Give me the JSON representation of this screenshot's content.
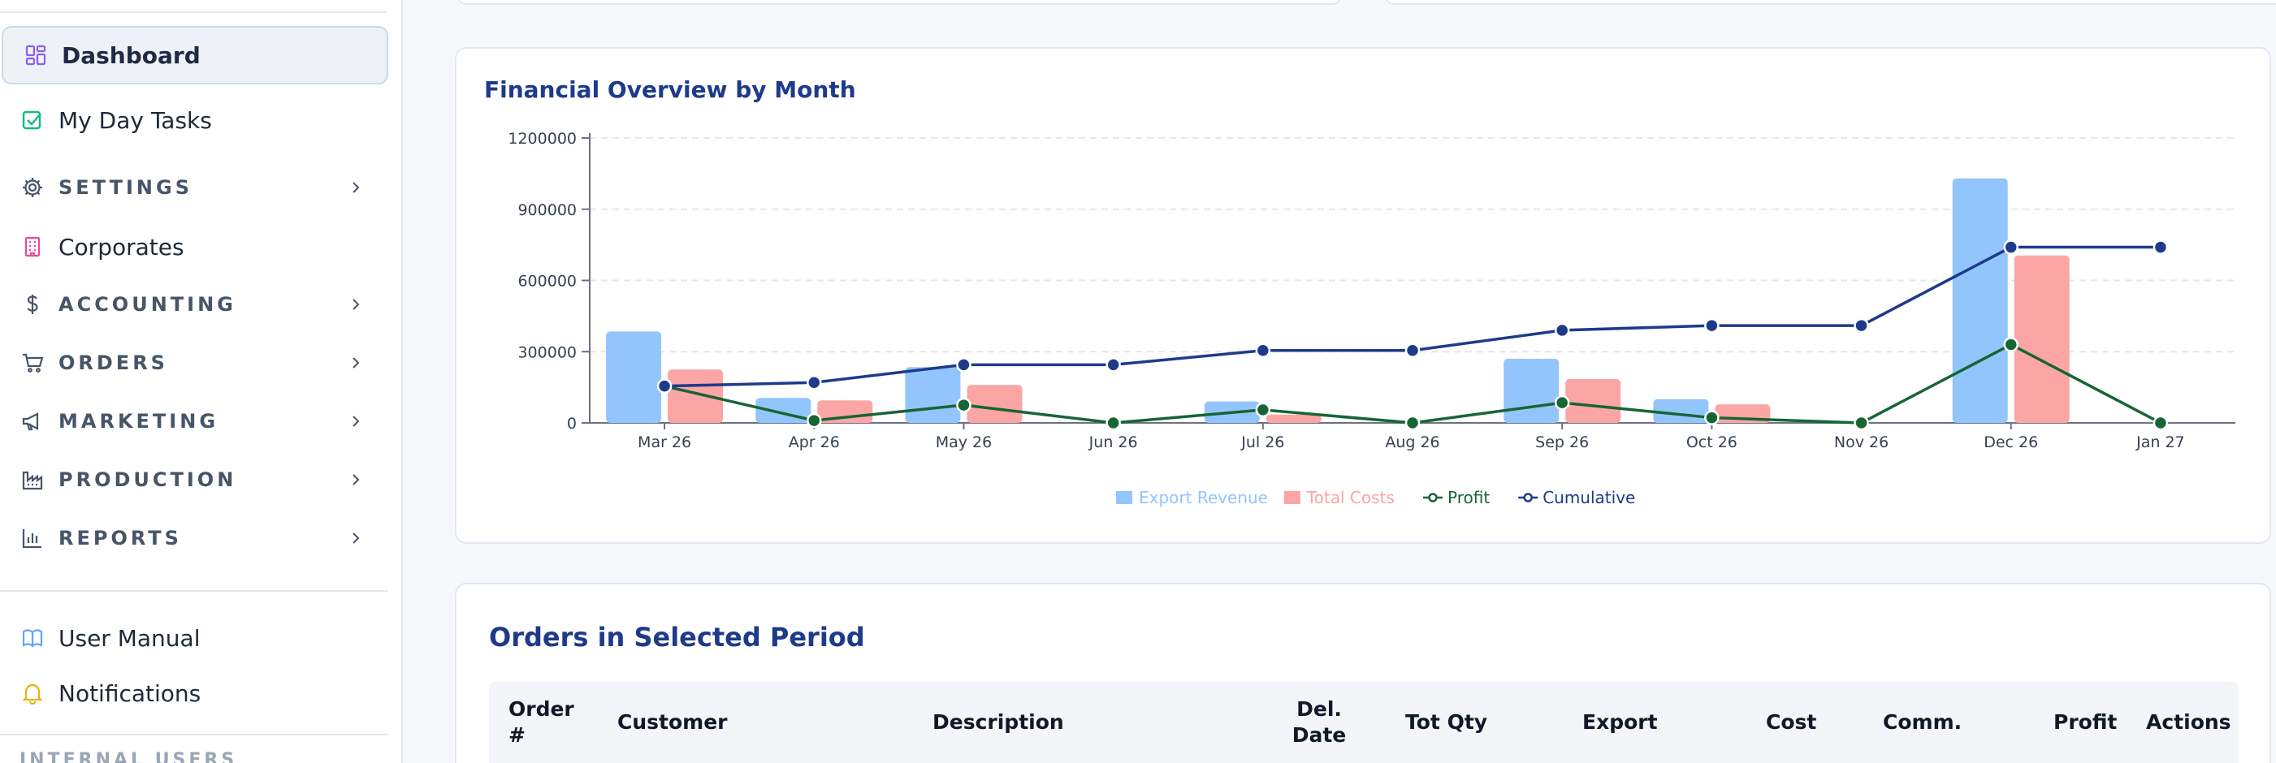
{
  "sidebar": {
    "items": [
      {
        "label": "Dashboard",
        "icon": "dashboard-icon"
      },
      {
        "label": "My Day Tasks",
        "icon": "checkbox-icon"
      },
      {
        "label": "SETTINGS",
        "icon": "gear-icon"
      },
      {
        "label": "Corporates",
        "icon": "building-icon"
      },
      {
        "label": "ACCOUNTING",
        "icon": "dollar-icon"
      },
      {
        "label": "ORDERS",
        "icon": "cart-icon"
      },
      {
        "label": "MARKETING",
        "icon": "megaphone-icon"
      },
      {
        "label": "PRODUCTION",
        "icon": "factory-icon"
      },
      {
        "label": "REPORTS",
        "icon": "bar-chart-icon"
      },
      {
        "label": "User Manual",
        "icon": "book-icon"
      },
      {
        "label": "Notifications",
        "icon": "bell-icon"
      }
    ],
    "faded_section": "INTERNAL USERS"
  },
  "chart_card": {
    "title": "Financial Overview by Month"
  },
  "chart_data": {
    "type": "bar",
    "title": "Financial Overview by Month",
    "categories": [
      "Mar 26",
      "Apr 26",
      "May 26",
      "Jun 26",
      "Jul 26",
      "Aug 26",
      "Sep 26",
      "Oct 26",
      "Nov 26",
      "Dec 26",
      "Jan 27"
    ],
    "y_ticks": [
      "0",
      "300000",
      "600000",
      "900000",
      "1200000"
    ],
    "ylim": [
      0,
      1200000
    ],
    "series": [
      {
        "name": "Export Revenue",
        "type": "bar",
        "color": "#93c5fd",
        "values": [
          385000,
          105000,
          235000,
          0,
          90000,
          0,
          270000,
          100000,
          0,
          1030000,
          0
        ]
      },
      {
        "name": "Total Costs",
        "type": "bar",
        "color": "#fca5a5",
        "values": [
          225000,
          95000,
          160000,
          0,
          35000,
          0,
          185000,
          78000,
          0,
          705000,
          0
        ]
      },
      {
        "name": "Profit",
        "type": "line",
        "color": "#166534",
        "values": [
          155000,
          10000,
          75000,
          0,
          55000,
          0,
          85000,
          22000,
          0,
          330000,
          0
        ]
      },
      {
        "name": "Cumulative",
        "type": "line",
        "color": "#1e3a8a",
        "values": [
          155000,
          170000,
          245000,
          245000,
          305000,
          305000,
          390000,
          410000,
          410000,
          740000,
          740000
        ]
      }
    ],
    "grid": true,
    "legend": "bottom-center"
  },
  "orders": {
    "title": "Orders in Selected Period",
    "columns": [
      {
        "label": "Order #"
      },
      {
        "label": "Customer"
      },
      {
        "label": "Description"
      },
      {
        "label": "Del. Date"
      },
      {
        "label": "Tot Qty"
      },
      {
        "label": "Export"
      },
      {
        "label": "Cost"
      },
      {
        "label": "Comm."
      },
      {
        "label": "Profit"
      },
      {
        "label": "Actions"
      }
    ]
  }
}
